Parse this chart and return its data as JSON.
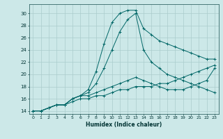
{
  "xlabel": "Humidex (Indice chaleur)",
  "background_color": "#cce8e8",
  "grid_color": "#aacccc",
  "line_color": "#006666",
  "xlim": [
    -0.5,
    23.5
  ],
  "ylim": [
    13.5,
    31.5
  ],
  "yticks": [
    14,
    16,
    18,
    20,
    22,
    24,
    26,
    28,
    30
  ],
  "xticks": [
    0,
    1,
    2,
    3,
    4,
    5,
    6,
    7,
    8,
    9,
    10,
    11,
    12,
    13,
    14,
    15,
    16,
    17,
    18,
    19,
    20,
    21,
    22,
    23
  ],
  "series": [
    {
      "x": [
        0,
        1,
        2,
        3,
        4,
        5,
        6,
        7,
        8,
        9,
        10,
        11,
        12,
        13,
        14,
        15,
        16,
        17,
        18,
        19,
        20,
        21,
        22,
        23
      ],
      "y": [
        14,
        14,
        14.5,
        15,
        15,
        16,
        16.5,
        17.5,
        20.5,
        25,
        28.5,
        30,
        30.5,
        30.5,
        27.5,
        26.5,
        25.5,
        25,
        24.5,
        24,
        23.5,
        23,
        22.5,
        22.5
      ]
    },
    {
      "x": [
        0,
        1,
        2,
        3,
        4,
        5,
        6,
        7,
        8,
        9,
        10,
        11,
        12,
        13,
        14,
        15,
        16,
        17,
        18,
        19,
        20,
        21,
        22,
        23
      ],
      "y": [
        14,
        14,
        14.5,
        15,
        15,
        16,
        16.5,
        17,
        18.5,
        21,
        24,
        27,
        29,
        30,
        24,
        22,
        21,
        20,
        19.5,
        19,
        18.5,
        18,
        17.5,
        17
      ]
    },
    {
      "x": [
        0,
        1,
        2,
        3,
        4,
        5,
        6,
        7,
        8,
        9,
        10,
        11,
        12,
        13,
        14,
        15,
        16,
        17,
        18,
        19,
        20,
        21,
        22,
        23
      ],
      "y": [
        14,
        14,
        14.5,
        15,
        15,
        16,
        16.5,
        16.5,
        17,
        17.5,
        18,
        18.5,
        19,
        19.5,
        19,
        18.5,
        18,
        17.5,
        17.5,
        17.5,
        18,
        18.5,
        19,
        21
      ]
    },
    {
      "x": [
        0,
        1,
        2,
        3,
        4,
        5,
        6,
        7,
        8,
        9,
        10,
        11,
        12,
        13,
        14,
        15,
        16,
        17,
        18,
        19,
        20,
        21,
        22,
        23
      ],
      "y": [
        14,
        14,
        14.5,
        15,
        15,
        15.5,
        16,
        16,
        16.5,
        16.5,
        17,
        17.5,
        17.5,
        18,
        18,
        18,
        18.5,
        18.5,
        19,
        19.5,
        20,
        20.5,
        21,
        21.5
      ]
    }
  ]
}
